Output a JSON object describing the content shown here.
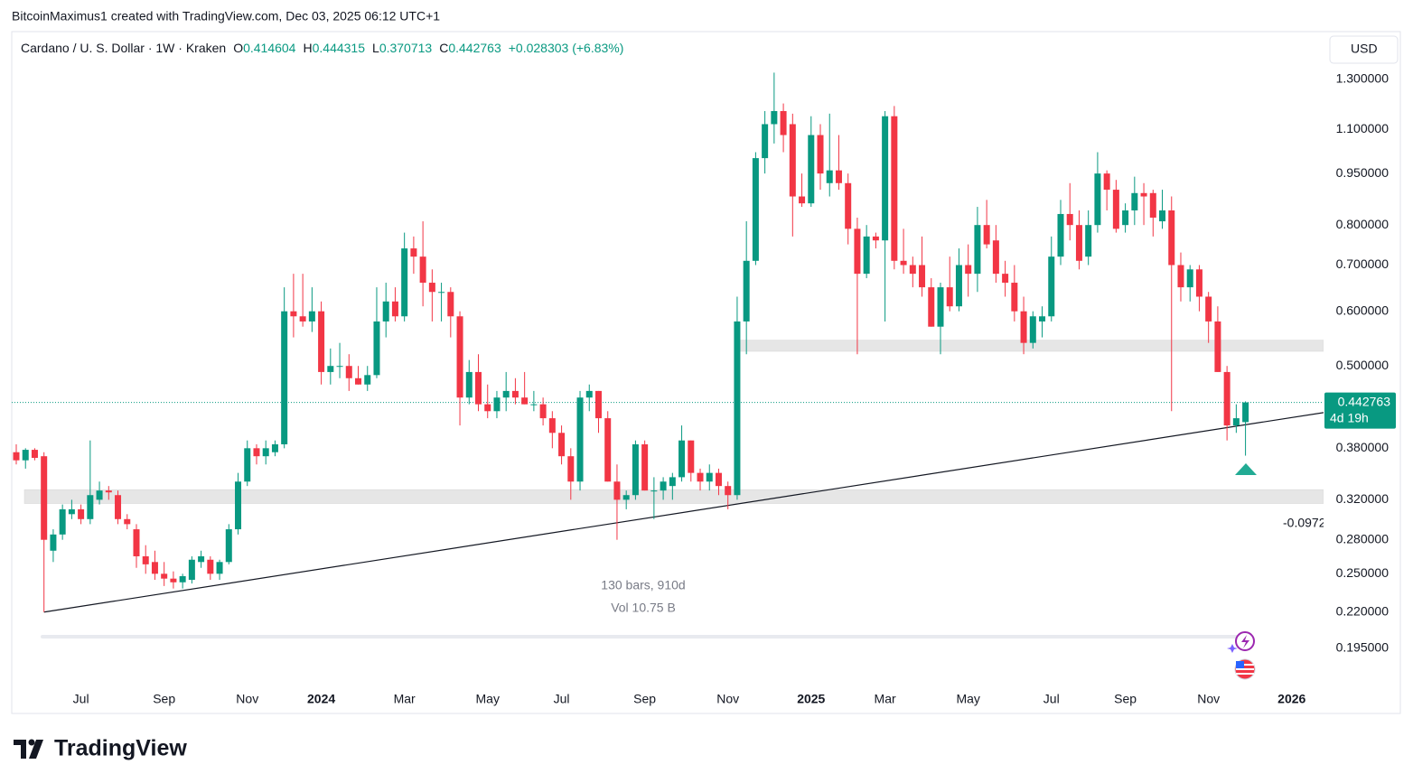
{
  "header": {
    "byline": "BitcoinMaximus1 created with TradingView.com, Dec 03, 2025 06:12 UTC+1",
    "currency": "USD"
  },
  "chart_data": {
    "type": "candlestick",
    "title": "Cardano / U. S. Dollar · 1W · Kraken",
    "legend_letters": [
      "O",
      "H",
      "L",
      "C"
    ],
    "change_label": "+0.028303 (+6.83%)",
    "categories": [
      null,
      null,
      null,
      null,
      null,
      null,
      null,
      "Jul",
      null,
      null,
      null,
      null,
      null,
      null,
      null,
      null,
      "Sep",
      null,
      null,
      null,
      null,
      null,
      null,
      null,
      null,
      "Nov",
      null,
      null,
      null,
      null,
      null,
      null,
      null,
      "2024",
      null,
      null,
      null,
      null,
      null,
      null,
      null,
      null,
      "Mar",
      null,
      null,
      null,
      null,
      null,
      null,
      null,
      null,
      "May",
      null,
      null,
      null,
      null,
      null,
      null,
      null,
      "Jul",
      null,
      null,
      null,
      null,
      null,
      null,
      null,
      null,
      "Sep",
      null,
      null,
      null,
      null,
      null,
      null,
      null,
      null,
      "Nov",
      null,
      null,
      null,
      null,
      null,
      null,
      null,
      null,
      "2025",
      null,
      null,
      null,
      null,
      null,
      null,
      null,
      "Mar",
      null,
      null,
      null,
      null,
      null,
      null,
      null,
      null,
      "May",
      null,
      null,
      null,
      null,
      null,
      null,
      null,
      null,
      "Jul",
      null,
      null,
      null,
      null,
      null,
      null,
      null,
      "Sep",
      null,
      null,
      null,
      null,
      null,
      null,
      null,
      null,
      "Nov",
      null,
      null,
      null,
      null,
      null,
      null,
      null,
      null,
      "2026"
    ],
    "open": [
      0.375,
      0.365,
      0.378,
      0.37,
      0.27,
      0.285,
      0.305,
      0.31,
      0.3,
      0.32,
      0.33,
      0.325,
      0.3,
      0.29,
      0.265,
      0.26,
      0.25,
      0.246,
      0.243,
      0.245,
      0.26,
      0.262,
      0.25,
      0.26,
      0.29,
      0.34,
      0.38,
      0.37,
      0.375,
      0.385,
      0.6,
      0.59,
      0.58,
      0.6,
      0.49,
      0.5,
      0.5,
      0.48,
      0.47,
      0.485,
      0.58,
      0.62,
      0.59,
      0.74,
      0.72,
      0.66,
      0.64,
      0.64,
      0.59,
      0.45,
      0.49,
      0.44,
      0.43,
      0.45,
      0.46,
      0.45,
      0.44,
      0.44,
      0.42,
      0.4,
      0.37,
      0.34,
      0.45,
      0.46,
      0.42,
      0.34,
      0.32,
      0.325,
      0.385,
      0.33,
      0.33,
      0.335,
      0.345,
      0.39,
      0.35,
      0.34,
      0.35,
      0.335,
      0.325,
      0.58,
      0.71,
      1.0,
      1.12,
      1.17,
      1.12,
      0.88,
      0.86,
      1.08,
      0.92,
      0.96,
      0.92,
      0.79,
      0.68,
      0.77,
      0.76,
      1.15,
      0.71,
      0.7,
      0.7,
      0.65,
      0.57,
      0.65,
      0.61,
      0.7,
      0.68,
      0.8,
      0.76,
      0.68,
      0.66,
      0.6,
      0.54,
      0.58,
      0.59,
      0.72,
      0.83,
      0.8,
      0.72,
      0.8,
      0.95,
      0.9,
      0.8,
      0.84,
      0.89,
      0.89,
      0.81,
      0.84,
      0.7,
      0.65,
      0.69,
      0.63,
      0.58,
      0.49,
      0.41,
      0.414604,
      null,
      null,
      null,
      null,
      null
    ],
    "high": [
      0.385,
      0.38,
      0.38,
      0.375,
      0.29,
      0.315,
      0.32,
      0.315,
      0.39,
      0.34,
      0.335,
      0.33,
      0.305,
      0.295,
      0.275,
      0.27,
      0.26,
      0.252,
      0.25,
      0.265,
      0.27,
      0.265,
      0.262,
      0.295,
      0.35,
      0.39,
      0.385,
      0.39,
      0.39,
      0.65,
      0.68,
      0.68,
      0.65,
      0.62,
      0.53,
      0.54,
      0.52,
      0.5,
      0.5,
      0.65,
      0.66,
      0.65,
      0.78,
      0.77,
      0.81,
      0.69,
      0.66,
      0.65,
      0.6,
      0.51,
      0.52,
      0.47,
      0.46,
      0.49,
      0.48,
      0.49,
      0.46,
      0.45,
      0.43,
      0.41,
      0.38,
      0.46,
      0.47,
      0.46,
      0.43,
      0.36,
      0.33,
      0.39,
      0.39,
      0.345,
      0.345,
      0.35,
      0.41,
      0.39,
      0.355,
      0.36,
      0.355,
      0.34,
      0.63,
      0.81,
      1.02,
      1.17,
      1.33,
      1.2,
      1.16,
      0.95,
      1.15,
      1.12,
      1.16,
      1.08,
      0.95,
      0.82,
      0.8,
      0.78,
      1.17,
      1.19,
      0.79,
      0.72,
      0.77,
      0.67,
      0.66,
      0.72,
      0.74,
      0.75,
      0.85,
      0.87,
      0.8,
      0.71,
      0.7,
      0.63,
      0.6,
      0.61,
      0.77,
      0.87,
      0.92,
      0.84,
      0.84,
      1.02,
      0.96,
      0.93,
      0.86,
      0.94,
      0.92,
      0.9,
      0.9,
      0.88,
      0.73,
      0.7,
      0.7,
      0.64,
      0.61,
      0.5,
      0.44,
      0.444315,
      null,
      null,
      null,
      null,
      null
    ],
    "low": [
      0.36,
      0.355,
      0.365,
      0.22,
      0.26,
      0.28,
      0.3,
      0.295,
      0.295,
      0.315,
      0.32,
      0.295,
      0.29,
      0.255,
      0.25,
      0.245,
      0.24,
      0.238,
      0.238,
      0.242,
      0.255,
      0.245,
      0.245,
      0.258,
      0.285,
      0.335,
      0.36,
      0.36,
      0.37,
      0.38,
      0.55,
      0.57,
      0.56,
      0.47,
      0.47,
      0.48,
      0.46,
      0.47,
      0.46,
      0.48,
      0.55,
      0.58,
      0.58,
      0.68,
      0.61,
      0.58,
      0.58,
      0.55,
      0.41,
      0.44,
      0.43,
      0.42,
      0.42,
      0.43,
      0.44,
      0.44,
      0.43,
      0.41,
      0.38,
      0.36,
      0.32,
      0.33,
      0.43,
      0.4,
      0.34,
      0.28,
      0.31,
      0.32,
      0.33,
      0.3,
      0.32,
      0.32,
      0.34,
      0.34,
      0.33,
      0.33,
      0.325,
      0.31,
      0.32,
      0.52,
      0.7,
      0.95,
      1.05,
      1.02,
      0.77,
      0.85,
      0.85,
      0.9,
      0.88,
      0.9,
      0.75,
      0.52,
      0.67,
      0.74,
      0.58,
      0.69,
      0.68,
      0.65,
      0.63,
      0.57,
      0.52,
      0.6,
      0.6,
      0.63,
      0.64,
      0.74,
      0.66,
      0.63,
      0.58,
      0.52,
      0.53,
      0.55,
      0.58,
      0.7,
      0.76,
      0.69,
      0.7,
      0.78,
      0.84,
      0.78,
      0.78,
      0.8,
      0.8,
      0.77,
      0.79,
      0.43,
      0.62,
      0.62,
      0.6,
      0.54,
      0.49,
      0.39,
      0.4,
      0.370713,
      null,
      null,
      null,
      null,
      null
    ],
    "close": [
      0.365,
      0.378,
      0.368,
      0.28,
      0.285,
      0.31,
      0.31,
      0.3,
      0.325,
      0.33,
      0.328,
      0.3,
      0.295,
      0.265,
      0.258,
      0.25,
      0.246,
      0.243,
      0.248,
      0.262,
      0.265,
      0.25,
      0.26,
      0.29,
      0.34,
      0.38,
      0.37,
      0.38,
      0.385,
      0.6,
      0.59,
      0.58,
      0.6,
      0.49,
      0.5,
      0.5,
      0.48,
      0.47,
      0.485,
      0.58,
      0.62,
      0.59,
      0.74,
      0.72,
      0.66,
      0.64,
      0.64,
      0.59,
      0.45,
      0.49,
      0.44,
      0.43,
      0.45,
      0.46,
      0.45,
      0.44,
      0.44,
      0.42,
      0.4,
      0.37,
      0.34,
      0.45,
      0.46,
      0.42,
      0.34,
      0.32,
      0.325,
      0.385,
      0.33,
      0.33,
      0.34,
      0.345,
      0.39,
      0.35,
      0.34,
      0.35,
      0.335,
      0.325,
      0.58,
      0.71,
      1.0,
      1.12,
      1.17,
      1.08,
      0.88,
      0.86,
      1.08,
      0.95,
      0.96,
      0.92,
      0.79,
      0.68,
      0.77,
      0.76,
      1.15,
      0.71,
      0.7,
      0.68,
      0.65,
      0.57,
      0.65,
      0.61,
      0.7,
      0.68,
      0.8,
      0.75,
      0.68,
      0.66,
      0.6,
      0.54,
      0.59,
      0.59,
      0.72,
      0.83,
      0.8,
      0.71,
      0.8,
      0.95,
      0.9,
      0.79,
      0.84,
      0.89,
      0.88,
      0.82,
      0.84,
      0.7,
      0.65,
      0.69,
      0.63,
      0.58,
      0.49,
      0.41,
      0.42,
      0.442763,
      null,
      null,
      null,
      null,
      null
    ],
    "up_color": "#089981",
    "down_color": "#f23645",
    "log_scale": true,
    "ylim": [
      0.1707,
      1.525
    ],
    "yticks": [
      {
        "value": 1.3,
        "label": "1.300000"
      },
      {
        "value": 1.1,
        "label": "1.100000"
      },
      {
        "value": 0.95,
        "label": "0.950000"
      },
      {
        "value": 0.8,
        "label": "0.800000"
      },
      {
        "value": 0.7,
        "label": "0.700000"
      },
      {
        "value": 0.6,
        "label": "0.600000"
      },
      {
        "value": 0.5,
        "label": "0.500000"
      },
      {
        "value": 0.38,
        "label": "0.380000"
      },
      {
        "value": 0.32,
        "label": "0.320000"
      },
      {
        "value": 0.28,
        "label": "0.280000"
      },
      {
        "value": 0.25,
        "label": "0.250000"
      },
      {
        "value": 0.22,
        "label": "0.220000"
      },
      {
        "value": 0.195,
        "label": "0.195000"
      }
    ],
    "zones": [
      {
        "high": 0.545,
        "low": 0.525
      },
      {
        "high": 0.331,
        "low": 0.316
      }
    ],
    "trendline": {
      "start": 0.22,
      "end": 0.428
    },
    "countdown": "4d 19h",
    "annotation": "-0.0972",
    "measure": {
      "bars": "130 bars, 910d",
      "volume": "Vol 10.75 B"
    }
  },
  "footer": {
    "logo": "TradingView"
  }
}
